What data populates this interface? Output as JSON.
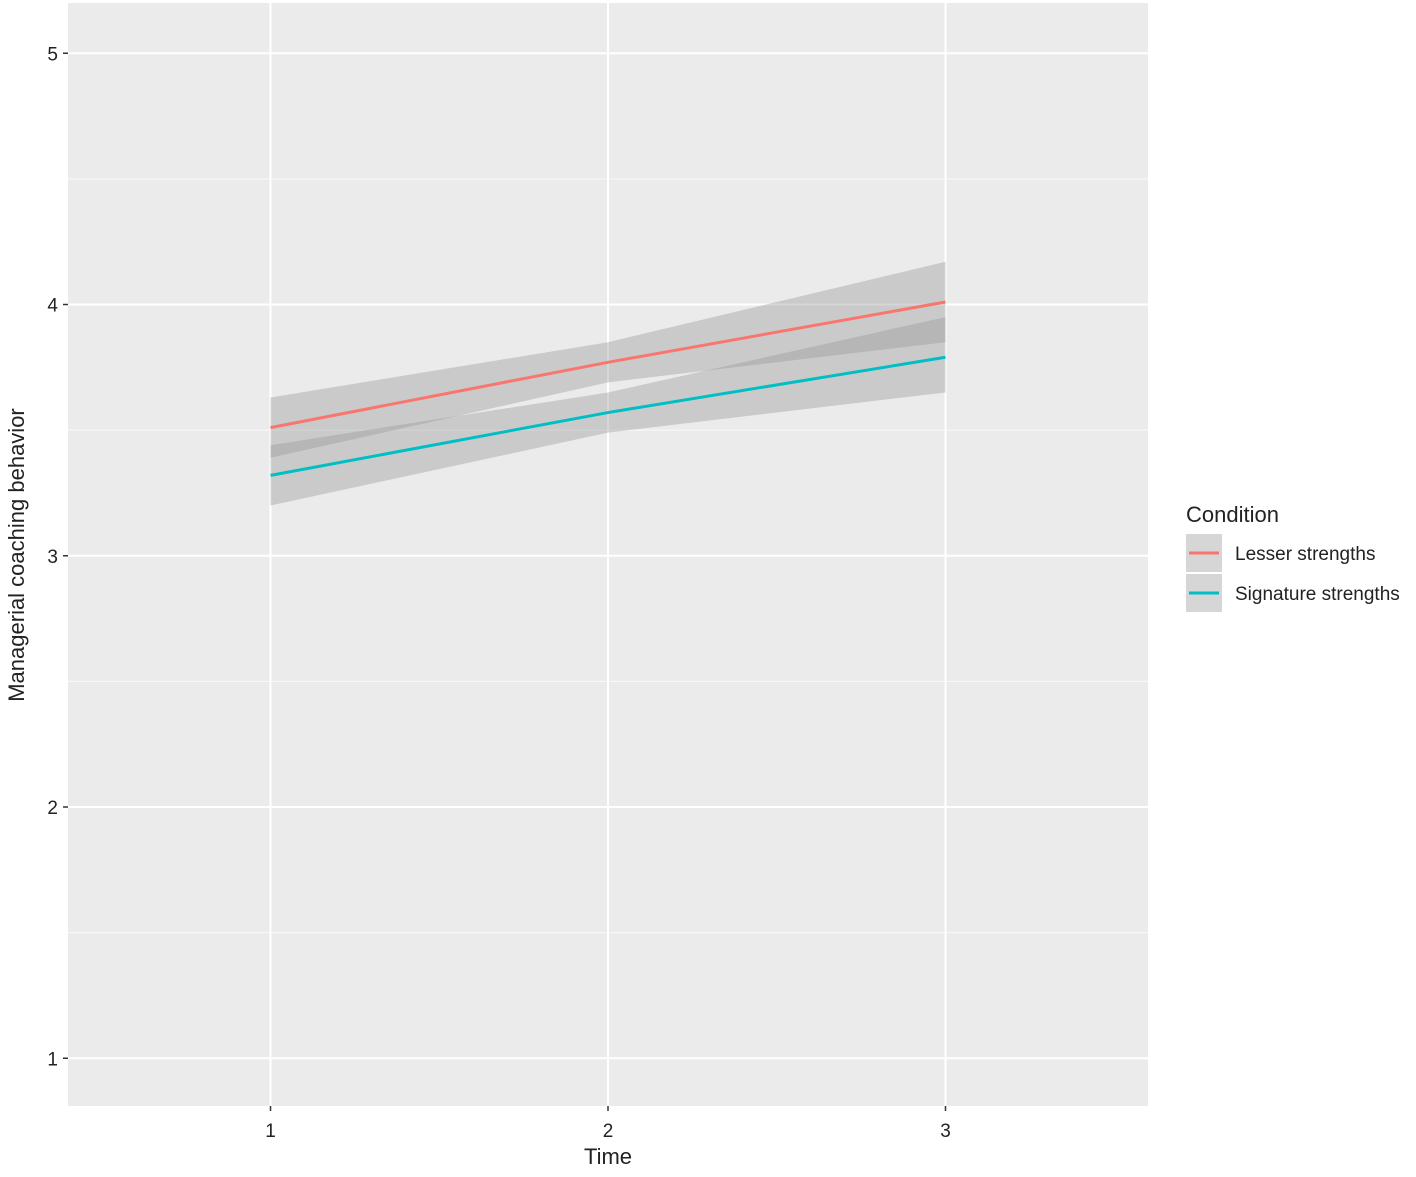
{
  "chart_data": {
    "type": "line",
    "x_label": "Time",
    "y_label": "Managerial coaching behavior",
    "legend_title": "Condition",
    "x": [
      1,
      2,
      3
    ],
    "series": [
      {
        "name": "Lesser strengths",
        "color": "#f8766d",
        "values": [
          3.51,
          3.77,
          4.01
        ],
        "lower": [
          3.39,
          3.69,
          3.85
        ],
        "upper": [
          3.63,
          3.85,
          4.17
        ]
      },
      {
        "name": "Signature strengths",
        "color": "#00bfc4",
        "values": [
          3.32,
          3.57,
          3.79
        ],
        "lower": [
          3.2,
          3.49,
          3.65
        ],
        "upper": [
          3.44,
          3.65,
          3.95
        ]
      }
    ],
    "band_color": "#999999",
    "xlim": [
      0.4,
      3.6
    ],
    "xticks": [
      1,
      2,
      3
    ],
    "ylim": [
      0.81,
      5.2
    ],
    "yticks": [
      1,
      2,
      3,
      4,
      5
    ],
    "y_minor_ticks": [
      1.5,
      2.5,
      3.5,
      4.5
    ],
    "grid": true,
    "legend_position": "right"
  }
}
